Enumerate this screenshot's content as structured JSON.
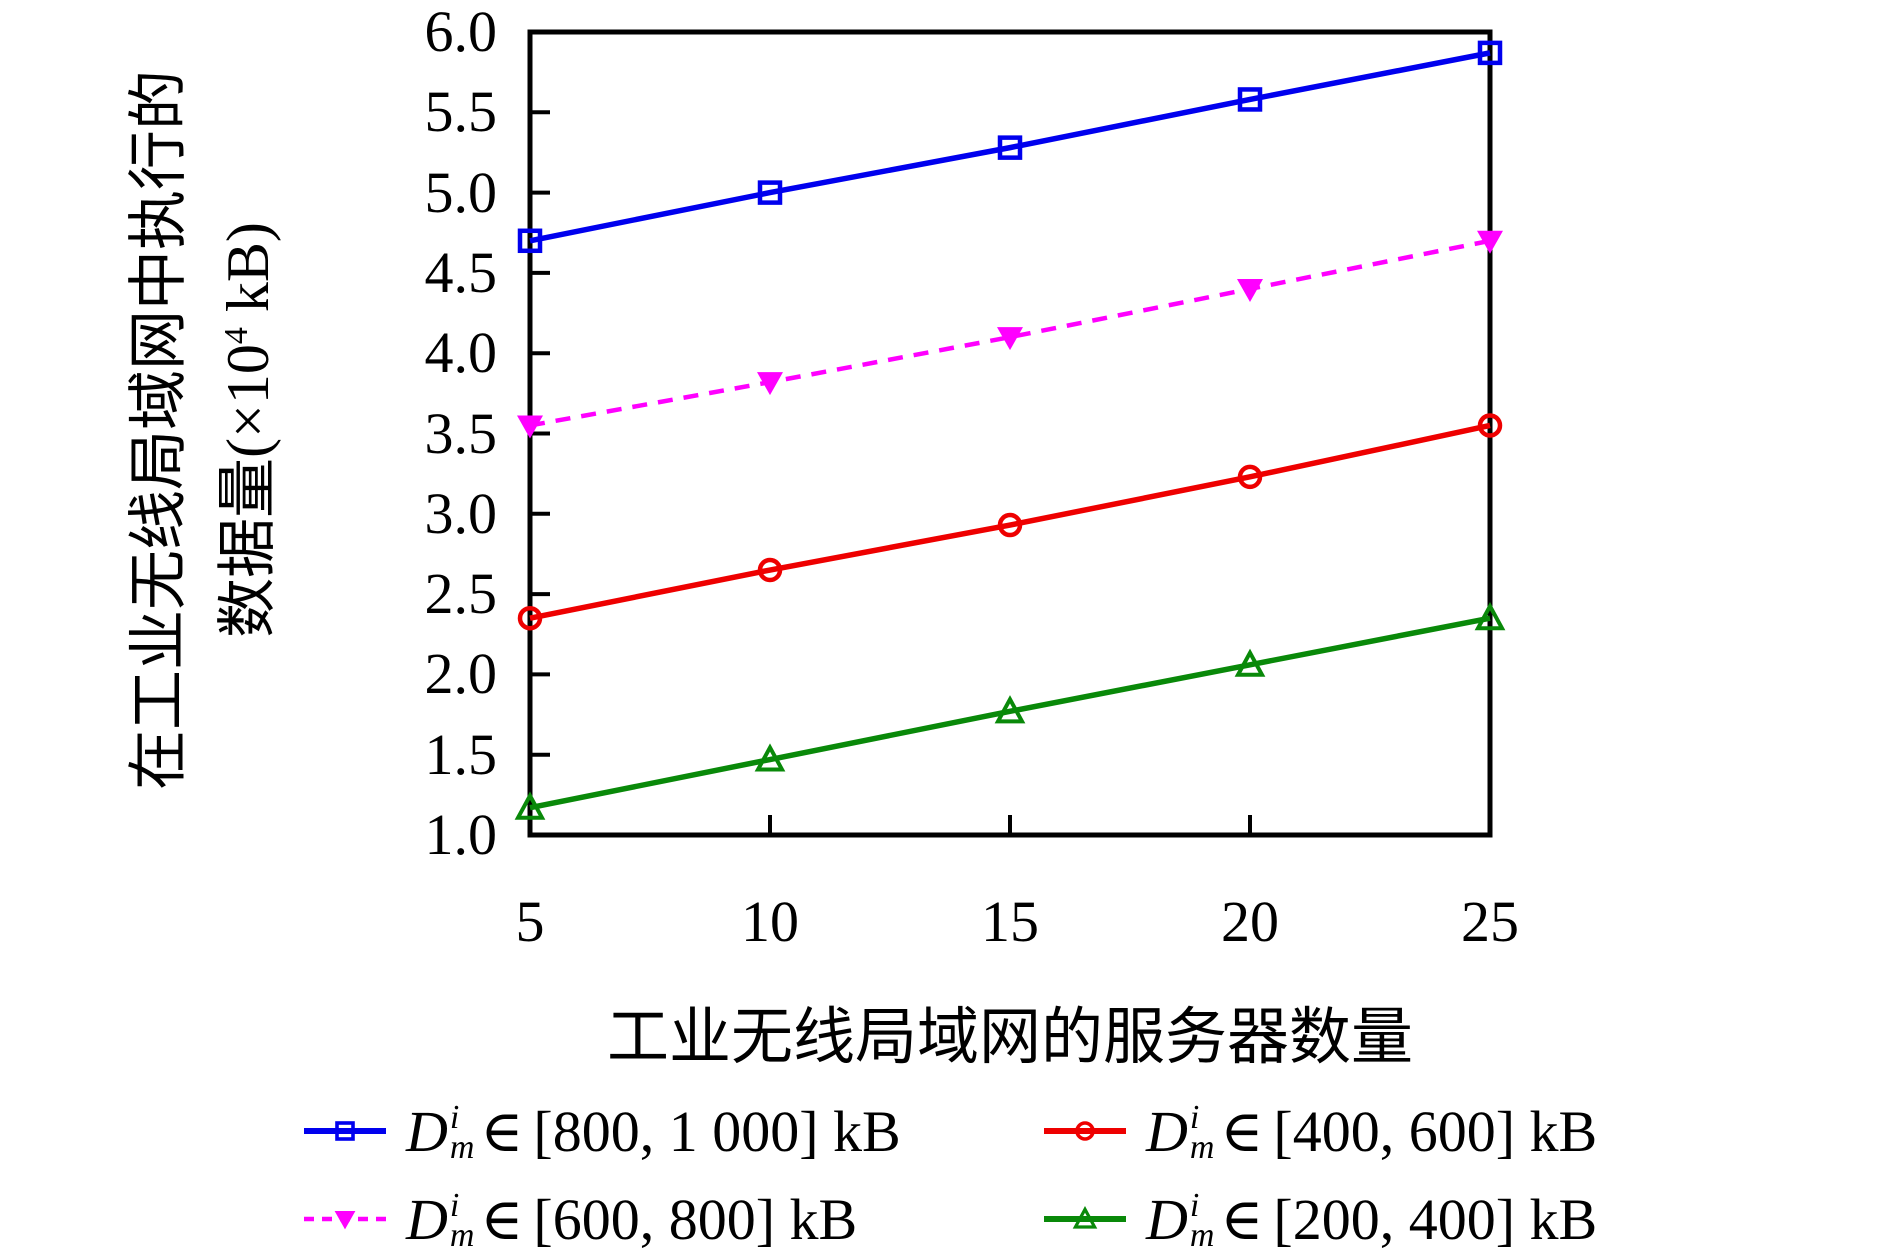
{
  "figure": {
    "ylabel_line1": "在工业无线局域网中执行的",
    "ylabel_line2_pre": "数据量(×10",
    "ylabel_line2_sup": "4",
    "ylabel_line2_post": " kB)",
    "xlabel": "工业无线局域网的服务器数量"
  },
  "chart_data": {
    "type": "line",
    "title": "",
    "xlabel": "工业无线局域网的服务器数量",
    "ylabel": "在工业无线局域网中执行的数据量 (×10^4 kB)",
    "x": [
      5,
      10,
      15,
      20,
      25
    ],
    "xlim": [
      5,
      25
    ],
    "ylim": [
      1.0,
      6.0
    ],
    "xticks": [
      "5",
      "10",
      "15",
      "20",
      "25"
    ],
    "yticks": [
      "1.0",
      "1.5",
      "2.0",
      "2.5",
      "3.0",
      "3.5",
      "4.0",
      "4.5",
      "5.0",
      "5.5",
      "6.0"
    ],
    "grid": false,
    "legend_position": "bottom",
    "series": [
      {
        "name": "D_m^i ∈ [800, 1 000] kB",
        "color": "#0000ee",
        "line": "solid",
        "marker": "square-open",
        "values": [
          4.7,
          5.0,
          5.28,
          5.58,
          5.87
        ]
      },
      {
        "name": "D_m^i ∈ [600, 800] kB",
        "color": "#ff00ff",
        "line": "dashed",
        "marker": "triangle-down-filled",
        "values": [
          3.55,
          3.82,
          4.1,
          4.4,
          4.7
        ]
      },
      {
        "name": "D_m^i ∈ [400, 600] kB",
        "color": "#ee0000",
        "line": "solid",
        "marker": "circle-open",
        "values": [
          2.35,
          2.65,
          2.93,
          3.23,
          3.55
        ]
      },
      {
        "name": "D_m^i ∈ [200, 400] kB",
        "color": "#098909",
        "line": "solid",
        "marker": "triangle-up-open",
        "values": [
          1.17,
          1.47,
          1.77,
          2.06,
          2.35
        ]
      }
    ]
  },
  "legend": {
    "items": [
      {
        "var": "D",
        "sup": "i",
        "sub": "m",
        "element_sign": "∈",
        "range": "[800, 1 000] kB",
        "color": "#0000ee",
        "line": "solid",
        "marker": "square-open"
      },
      {
        "var": "D",
        "sup": "i",
        "sub": "m",
        "element_sign": "∈",
        "range": "[400, 600] kB",
        "color": "#ee0000",
        "line": "solid",
        "marker": "circle-open"
      },
      {
        "var": "D",
        "sup": "i",
        "sub": "m",
        "element_sign": "∈",
        "range": "[600, 800] kB",
        "color": "#ff00ff",
        "line": "dashed",
        "marker": "triangle-down-filled"
      },
      {
        "var": "D",
        "sup": "i",
        "sub": "m",
        "element_sign": "∈",
        "range": "[200, 400] kB",
        "color": "#098909",
        "line": "solid",
        "marker": "triangle-up-open"
      }
    ]
  }
}
